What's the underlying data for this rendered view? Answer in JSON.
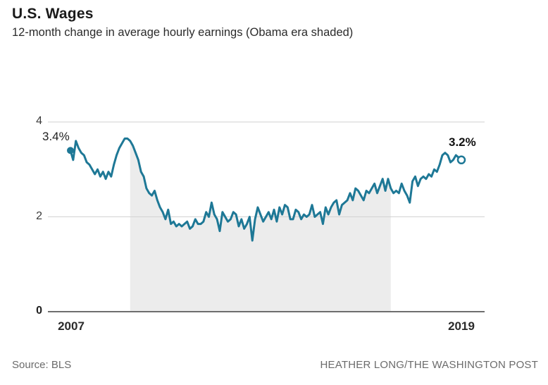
{
  "header": {
    "title": "U.S. Wages",
    "subtitle": "12-month change in average hourly earnings (Obama era shaded)"
  },
  "footer": {
    "source": "Source: BLS",
    "credit": "HEATHER LONG/THE WASHINGTON POST"
  },
  "chart_data": {
    "type": "line",
    "title": "U.S. Wages",
    "subtitle": "12-month change in average hourly earnings (Obama era shaded)",
    "unit": "%",
    "ylim": [
      0,
      4.35
    ],
    "grid": "horizontal",
    "y_ticks": [
      {
        "value": 4,
        "label": "4"
      },
      {
        "value": 2,
        "label": "2"
      },
      {
        "value": 0,
        "label": "0"
      }
    ],
    "x_ticks": [
      {
        "label": "2007"
      },
      {
        "label": "2019"
      }
    ],
    "annotations": {
      "start": {
        "label": "3.4%",
        "value": 3.4,
        "marker": "filled-dot"
      },
      "end": {
        "label": "3.2%",
        "value": 3.2,
        "marker": "open-circle"
      }
    },
    "shaded_region": {
      "label": "Obama era",
      "start_index": 22,
      "end_index": 118
    },
    "colors": {
      "line": "#1e7896",
      "shade": "#ececec",
      "grid": "#d2d2d2",
      "axis": "#6e6e6e"
    },
    "series": [
      {
        "name": "12-month change in average hourly earnings",
        "start": "2007-03",
        "frequency": "monthly",
        "values": [
          3.4,
          3.2,
          3.6,
          3.45,
          3.35,
          3.3,
          3.15,
          3.1,
          3.0,
          2.9,
          3.0,
          2.85,
          2.95,
          2.8,
          2.95,
          2.85,
          3.1,
          3.3,
          3.45,
          3.55,
          3.65,
          3.65,
          3.6,
          3.5,
          3.35,
          3.2,
          2.95,
          2.85,
          2.6,
          2.5,
          2.45,
          2.55,
          2.35,
          2.2,
          2.1,
          1.95,
          2.15,
          1.85,
          1.9,
          1.8,
          1.85,
          1.8,
          1.85,
          1.9,
          1.75,
          1.8,
          1.95,
          1.85,
          1.85,
          1.9,
          2.1,
          2.0,
          2.3,
          2.05,
          1.95,
          1.7,
          2.1,
          2.0,
          1.9,
          1.95,
          2.1,
          2.05,
          1.8,
          1.95,
          1.75,
          1.85,
          2.0,
          1.5,
          1.95,
          2.2,
          2.05,
          1.9,
          2.0,
          2.1,
          1.95,
          2.15,
          1.9,
          2.2,
          2.05,
          2.25,
          2.2,
          1.95,
          1.95,
          2.15,
          2.1,
          1.95,
          2.05,
          2.0,
          2.05,
          2.25,
          2.0,
          2.05,
          2.1,
          1.85,
          2.2,
          2.05,
          2.2,
          2.3,
          2.35,
          2.05,
          2.25,
          2.3,
          2.35,
          2.5,
          2.35,
          2.6,
          2.55,
          2.45,
          2.35,
          2.55,
          2.5,
          2.6,
          2.7,
          2.5,
          2.65,
          2.8,
          2.55,
          2.8,
          2.6,
          2.5,
          2.55,
          2.5,
          2.7,
          2.55,
          2.45,
          2.3,
          2.75,
          2.85,
          2.65,
          2.8,
          2.85,
          2.8,
          2.9,
          2.85,
          3.0,
          2.95,
          3.1,
          3.3,
          3.35,
          3.3,
          3.15,
          3.2,
          3.3,
          3.25,
          3.2
        ]
      }
    ]
  }
}
